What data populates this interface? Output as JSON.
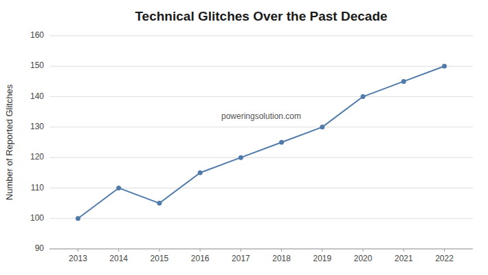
{
  "chart_data": {
    "type": "line",
    "title": "Technical Glitches Over the Past Decade",
    "ylabel": "Number of Reported Glitches",
    "x": [
      2013,
      2014,
      2015,
      2016,
      2017,
      2018,
      2019,
      2020,
      2021,
      2022
    ],
    "values": [
      100,
      110,
      105,
      115,
      120,
      125,
      130,
      140,
      145,
      150
    ],
    "xlim": [
      2012.3,
      2022.7
    ],
    "xticks": [
      2013,
      2014,
      2015,
      2016,
      2017,
      2018,
      2019,
      2020,
      2021,
      2022
    ],
    "ylim": [
      90,
      160
    ],
    "yticks": [
      90,
      100,
      110,
      120,
      130,
      140,
      150,
      160
    ],
    "color": "#4f7aaa",
    "marker": "circle",
    "grid": true,
    "annotations": [
      "poweringsolution.com"
    ]
  }
}
